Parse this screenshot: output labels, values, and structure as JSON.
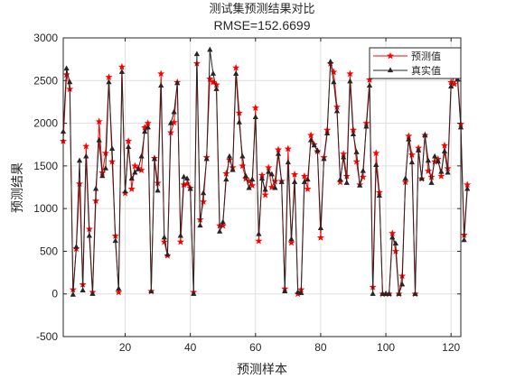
{
  "chart_data": {
    "type": "line",
    "title": "测试集预测结果对比",
    "subtitle": "RMSE=152.6699",
    "xlabel": "预测样本",
    "ylabel": "预测结果",
    "xlim": [
      1,
      123
    ],
    "ylim": [
      -500,
      3000
    ],
    "xticks": [
      20,
      40,
      60,
      80,
      100,
      120
    ],
    "yticks": [
      -500,
      0,
      500,
      1000,
      1500,
      2000,
      2500,
      3000
    ],
    "grid": true,
    "legend_position": "top-right",
    "series": [
      {
        "name": "预测值",
        "color": "#ff0000",
        "marker": "star",
        "values": [
          1790,
          2570,
          2400,
          50,
          530,
          1290,
          110,
          1730,
          760,
          20,
          1090,
          2020,
          1420,
          1650,
          2540,
          1550,
          680,
          20,
          2660,
          1180,
          1790,
          1230,
          1500,
          1470,
          1450,
          1950,
          2000,
          30,
          1590,
          1300,
          2580,
          610,
          450,
          1890,
          2010,
          2480,
          610,
          1280,
          1290,
          1240,
          20,
          2700,
          870,
          1080,
          1600,
          2520,
          2480,
          2450,
          800,
          800,
          1410,
          1570,
          1480,
          2650,
          2120,
          1500,
          1350,
          1320,
          1270,
          2180,
          620,
          1390,
          1160,
          1480,
          1250,
          1320,
          1690,
          1320,
          60,
          1700,
          600,
          1400,
          0,
          50,
          1380,
          1230,
          1860,
          1750,
          1670,
          660,
          1600,
          1920,
          2700,
          2600,
          2190,
          1310,
          1640,
          1380,
          2580,
          1920,
          1550,
          1280,
          1370,
          2000,
          2510,
          80,
          1650,
          1190,
          0,
          0,
          0,
          710,
          500,
          0,
          210,
          1310,
          1850,
          1630,
          0,
          1710,
          1350,
          1860,
          1440,
          1370,
          1550,
          1580,
          1380,
          1740,
          1470,
          2480,
          2460,
          2560,
          1990,
          690,
          1280
        ]
      },
      {
        "name": "真实值",
        "color": "#262626",
        "marker": "triangle",
        "values": [
          1900,
          2640,
          2480,
          -10,
          550,
          1560,
          40,
          1610,
          680,
          0,
          1230,
          1800,
          1380,
          1470,
          2480,
          1700,
          620,
          60,
          2600,
          1200,
          1720,
          1350,
          1420,
          1460,
          1610,
          1900,
          1950,
          30,
          1580,
          1210,
          2440,
          660,
          460,
          2000,
          2130,
          2470,
          680,
          1370,
          1350,
          1230,
          0,
          2810,
          800,
          1180,
          1580,
          2860,
          2580,
          2400,
          730,
          840,
          1340,
          1610,
          1450,
          2580,
          2010,
          1610,
          1380,
          1240,
          1340,
          2070,
          700,
          1350,
          1220,
          1430,
          1400,
          1240,
          1640,
          1310,
          30,
          1540,
          640,
          1310,
          20,
          10,
          1310,
          1340,
          1800,
          1740,
          1680,
          770,
          1580,
          1880,
          2720,
          2480,
          2140,
          1340,
          1600,
          1300,
          2490,
          1870,
          1660,
          1270,
          1440,
          1960,
          2440,
          0,
          1510,
          1150,
          0,
          0,
          0,
          660,
          590,
          0,
          110,
          1350,
          1810,
          1540,
          0,
          1680,
          1350,
          1860,
          1560,
          1300,
          1610,
          1550,
          1430,
          1670,
          1420,
          2430,
          2570,
          2510,
          1950,
          630,
          1230
        ]
      }
    ]
  }
}
